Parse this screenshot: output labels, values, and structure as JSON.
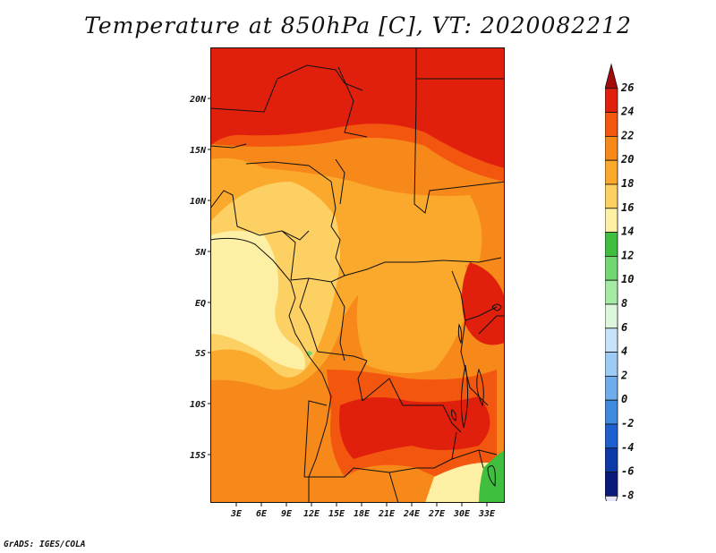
{
  "title": "Temperature at 850hPa [C], VT: 2020082212",
  "footer": "GrADS: IGES/COLA",
  "map": {
    "lon_range": [
      0,
      35.5
    ],
    "lat_range": [
      -20,
      24.5
    ],
    "lat_ticks": [
      "20N",
      "15N",
      "10N",
      "5N",
      "EQ",
      "5S",
      "10S",
      "15S"
    ],
    "lon_ticks": [
      "3E",
      "6E",
      "9E",
      "12E",
      "15E",
      "18E",
      "21E",
      "24E",
      "27E",
      "30E",
      "33E"
    ]
  },
  "colorbar": {
    "labels": [
      "26",
      "24",
      "22",
      "20",
      "18",
      "16",
      "14",
      "12",
      "10",
      "8",
      "6",
      "4",
      "2",
      "0",
      "-2",
      "-4",
      "-6",
      "-8"
    ],
    "colors": [
      "#a50a0a",
      "#e0200c",
      "#f2560f",
      "#f7891a",
      "#fba92c",
      "#fdd064",
      "#fdf0a5",
      "#3fbe3f",
      "#72d672",
      "#a4e9a4",
      "#dcf7dc",
      "#c7e2f7",
      "#9cccf3",
      "#6faceb",
      "#3f89df",
      "#1f5fd0",
      "#0c3aa6",
      "#0a1a7a",
      "#e4e4f4"
    ]
  }
}
